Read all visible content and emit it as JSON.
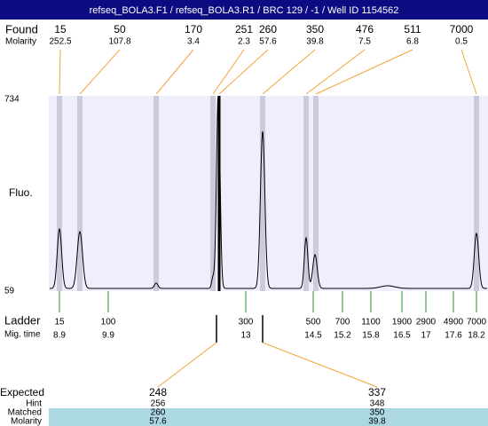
{
  "header": {
    "title": "refseq_BOLA3.F1 / refseq_BOLA3.R1 / BRC 129 / -1 / Well ID 1154562"
  },
  "found": {
    "label": "Found",
    "values": [
      15,
      50,
      170,
      251,
      260,
      350,
      476,
      511,
      7000
    ]
  },
  "molarity": {
    "label": "Molarity",
    "values": [
      252.5,
      107.8,
      3.4,
      2.3,
      57.6,
      39.8,
      7.5,
      6.8,
      0.5
    ]
  },
  "y_axis": {
    "label": "Fluo.",
    "max": 734,
    "min": 59
  },
  "ladder": {
    "label": "Ladder",
    "values": [
      15,
      100,
      300,
      500,
      700,
      1100,
      1900,
      2900,
      4900,
      7000
    ]
  },
  "mig_time": {
    "label": "Mig. time",
    "values": [
      8.9,
      9.9,
      13,
      14.5,
      15.2,
      15.8,
      16.5,
      17,
      17.6,
      18.2
    ]
  },
  "expected": {
    "label": "Expected",
    "values": [
      248,
      337
    ]
  },
  "hint": {
    "label": "Hint",
    "values": [
      256,
      348
    ]
  },
  "matched": {
    "label": "Matched",
    "values": [
      260,
      350
    ]
  },
  "matched_molarity": {
    "label": "Molarity",
    "values": [
      57.6,
      39.8
    ]
  }
}
